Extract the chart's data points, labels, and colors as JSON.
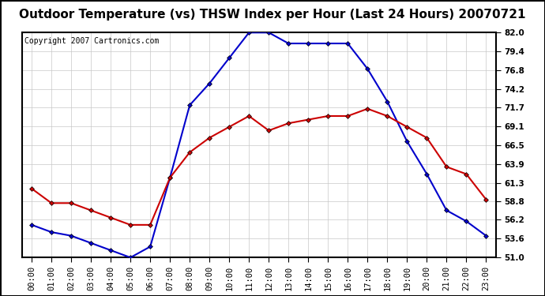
{
  "title": "Outdoor Temperature (vs) THSW Index per Hour (Last 24 Hours) 20070721",
  "copyright": "Copyright 2007 Cartronics.com",
  "hours": [
    "00:00",
    "01:00",
    "02:00",
    "03:00",
    "04:00",
    "05:00",
    "06:00",
    "07:00",
    "08:00",
    "09:00",
    "10:00",
    "11:00",
    "12:00",
    "13:00",
    "14:00",
    "15:00",
    "16:00",
    "17:00",
    "18:00",
    "19:00",
    "20:00",
    "21:00",
    "22:00",
    "23:00"
  ],
  "temp_red": [
    60.5,
    58.5,
    58.5,
    57.5,
    56.5,
    55.5,
    55.5,
    62.0,
    65.5,
    67.5,
    69.0,
    70.5,
    68.5,
    69.5,
    70.0,
    70.5,
    70.5,
    71.5,
    70.5,
    69.0,
    67.5,
    63.5,
    62.5,
    59.0
  ],
  "thsw_blue": [
    55.5,
    54.5,
    54.0,
    53.0,
    52.0,
    51.0,
    52.5,
    62.0,
    72.0,
    75.0,
    78.5,
    82.0,
    82.0,
    80.5,
    80.5,
    80.5,
    80.5,
    77.0,
    72.5,
    67.0,
    62.5,
    57.5,
    56.0,
    54.0
  ],
  "ylim_min": 51.0,
  "ylim_max": 82.0,
  "yticks": [
    51.0,
    53.6,
    56.2,
    58.8,
    61.3,
    63.9,
    66.5,
    69.1,
    71.7,
    74.2,
    76.8,
    79.4,
    82.0
  ],
  "red_color": "#cc0000",
  "blue_color": "#0000cc",
  "bg_color": "#ffffff",
  "grid_color": "#c8c8c8",
  "title_fontsize": 11,
  "copyright_fontsize": 7,
  "tick_fontsize": 7.5,
  "marker_size": 3,
  "line_width": 1.5
}
